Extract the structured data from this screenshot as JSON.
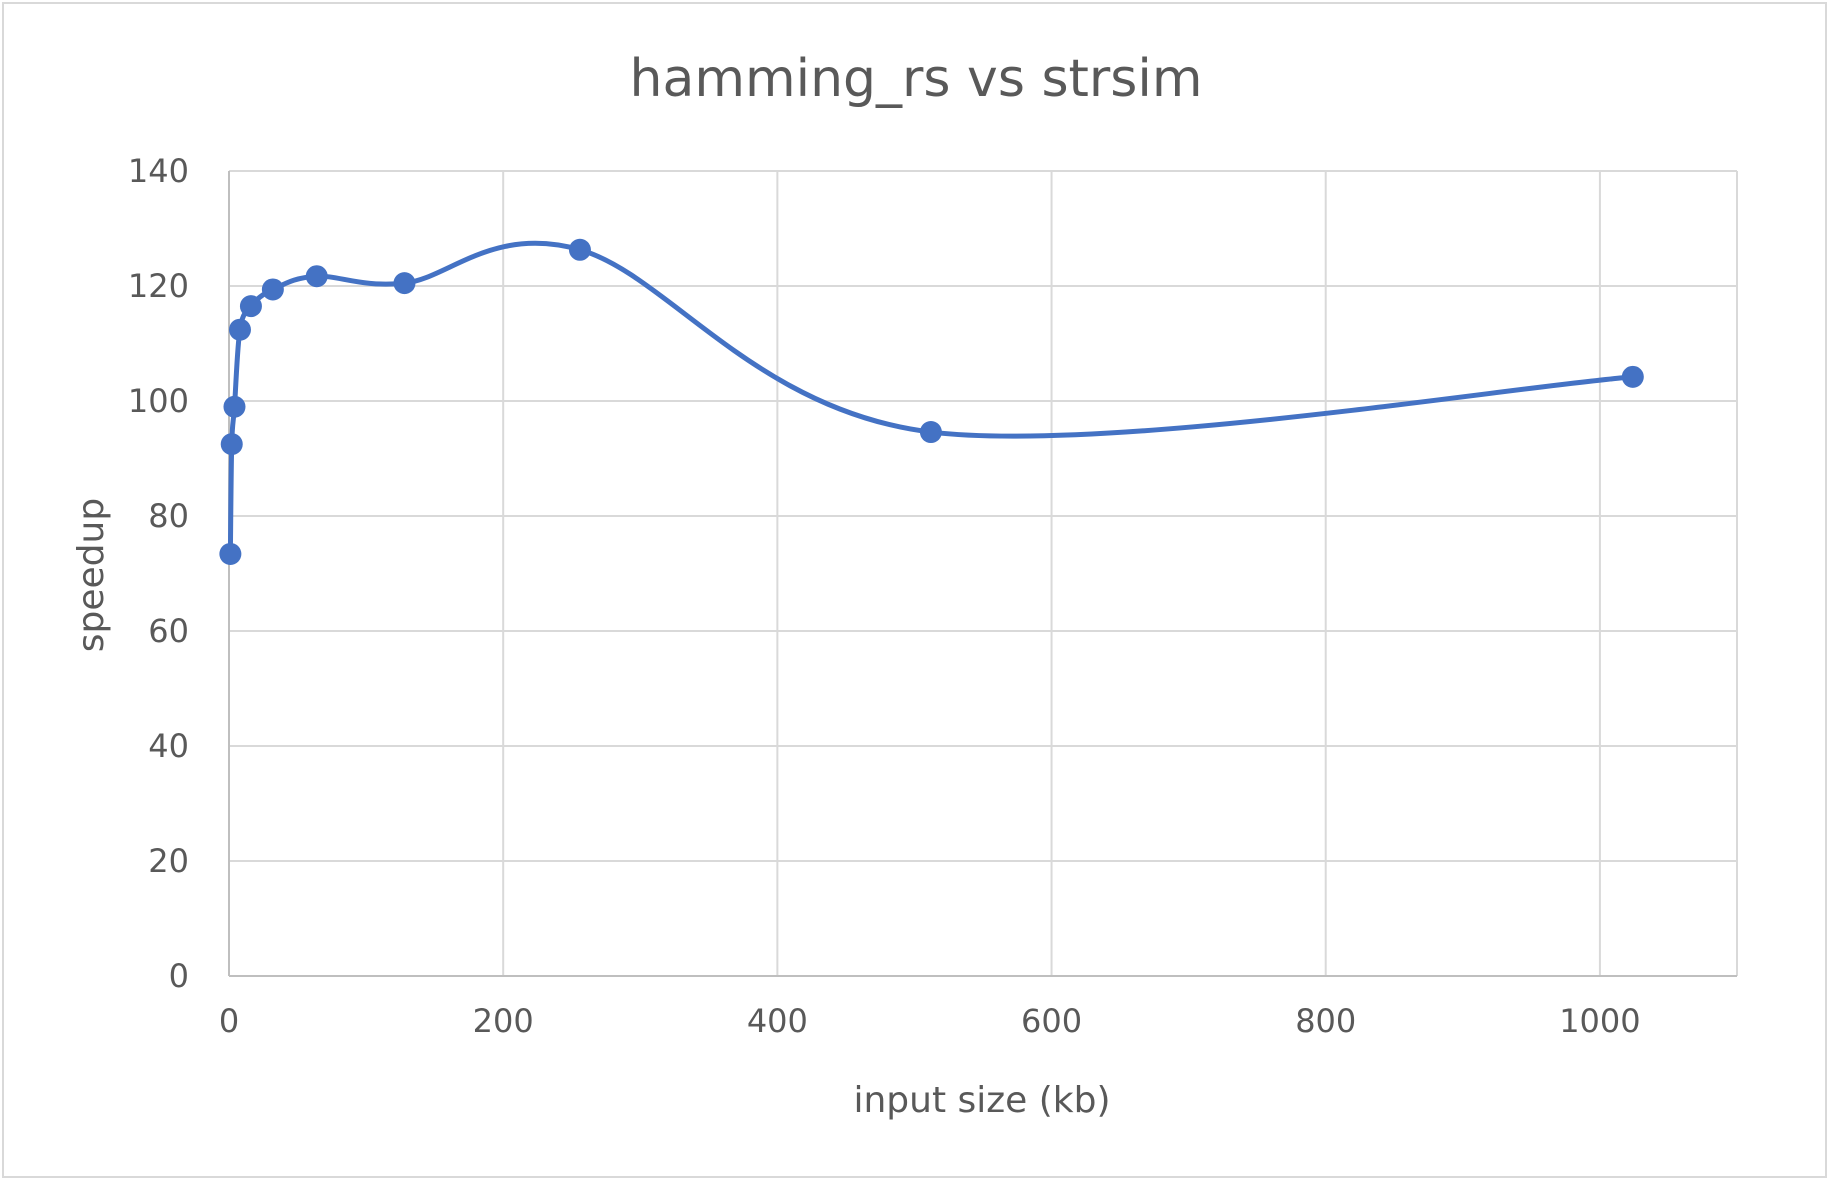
{
  "chart_data": {
    "type": "scatter",
    "title": "hamming_rs vs strsim",
    "xlabel": "input size (kb)",
    "ylabel": "speedup",
    "xlim": [
      0,
      1100
    ],
    "ylim": [
      0,
      140
    ],
    "xticks": [
      0,
      200,
      400,
      600,
      800,
      1000
    ],
    "yticks": [
      0,
      20,
      40,
      60,
      80,
      100,
      120,
      140
    ],
    "grid": true,
    "smooth_line": true,
    "series": [
      {
        "color": "#4472c4",
        "x": [
          1,
          2,
          4,
          8,
          16,
          32,
          64,
          128,
          256,
          512,
          1024
        ],
        "y": [
          73.4,
          92.5,
          99.0,
          112.4,
          116.5,
          119.4,
          121.7,
          120.5,
          126.3,
          94.6,
          104.2
        ]
      }
    ]
  }
}
